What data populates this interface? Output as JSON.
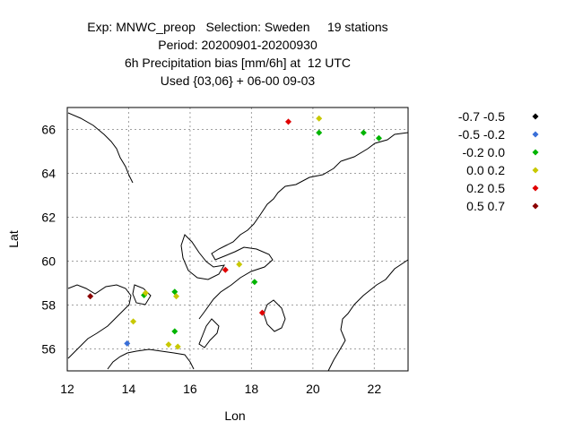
{
  "title": {
    "line1": "Exp: MNWC_preop   Selection: Sweden     19 stations",
    "line2": "Period: 20200901-20200930",
    "line3": "6h Precipitation bias [mm/6h] at  12 UTC",
    "line4": "Used {03,06} + 06-00 09-03"
  },
  "chart_data": {
    "type": "scatter",
    "title": "Exp: MNWC_preop   Selection: Sweden     19 stations",
    "xlabel": "Lon",
    "ylabel": "Lat",
    "xlim": [
      12,
      23.1
    ],
    "ylim": [
      55,
      67
    ],
    "xticks": [
      12,
      14,
      16,
      18,
      20,
      22
    ],
    "yticks": [
      56,
      58,
      60,
      62,
      64,
      66
    ],
    "grid": true,
    "legend_position": "right",
    "legend": [
      {
        "label": "-0.7 -0.5",
        "color": "#000000"
      },
      {
        "label": "-0.5 -0.2",
        "color": "#3a6fd8"
      },
      {
        "label": "-0.2 0.0",
        "color": "#00b400"
      },
      {
        "label": "0.0 0.2",
        "color": "#c8c800"
      },
      {
        "label": "0.2 0.5",
        "color": "#e00000"
      },
      {
        "label": "0.5 0.7",
        "color": "#8b0000"
      }
    ],
    "points": [
      {
        "lon": 19.2,
        "lat": 66.35,
        "bin": 4
      },
      {
        "lon": 20.2,
        "lat": 66.5,
        "bin": 3
      },
      {
        "lon": 20.2,
        "lat": 65.85,
        "bin": 2
      },
      {
        "lon": 21.65,
        "lat": 65.85,
        "bin": 2
      },
      {
        "lon": 22.15,
        "lat": 65.6,
        "bin": 2
      },
      {
        "lon": 17.6,
        "lat": 59.85,
        "bin": 3
      },
      {
        "lon": 17.15,
        "lat": 59.6,
        "bin": 4
      },
      {
        "lon": 18.1,
        "lat": 59.05,
        "bin": 2
      },
      {
        "lon": 12.75,
        "lat": 58.4,
        "bin": 5
      },
      {
        "lon": 14.5,
        "lat": 58.45,
        "bin": 2
      },
      {
        "lon": 14.55,
        "lat": 58.55,
        "bin": 3
      },
      {
        "lon": 15.5,
        "lat": 58.6,
        "bin": 2
      },
      {
        "lon": 15.55,
        "lat": 58.4,
        "bin": 3
      },
      {
        "lon": 18.35,
        "lat": 57.65,
        "bin": 4
      },
      {
        "lon": 14.15,
        "lat": 57.25,
        "bin": 3
      },
      {
        "lon": 15.5,
        "lat": 56.8,
        "bin": 2
      },
      {
        "lon": 13.95,
        "lat": 56.25,
        "bin": 1
      },
      {
        "lon": 15.3,
        "lat": 56.2,
        "bin": 3
      },
      {
        "lon": 15.6,
        "lat": 56.1,
        "bin": 3
      }
    ]
  }
}
